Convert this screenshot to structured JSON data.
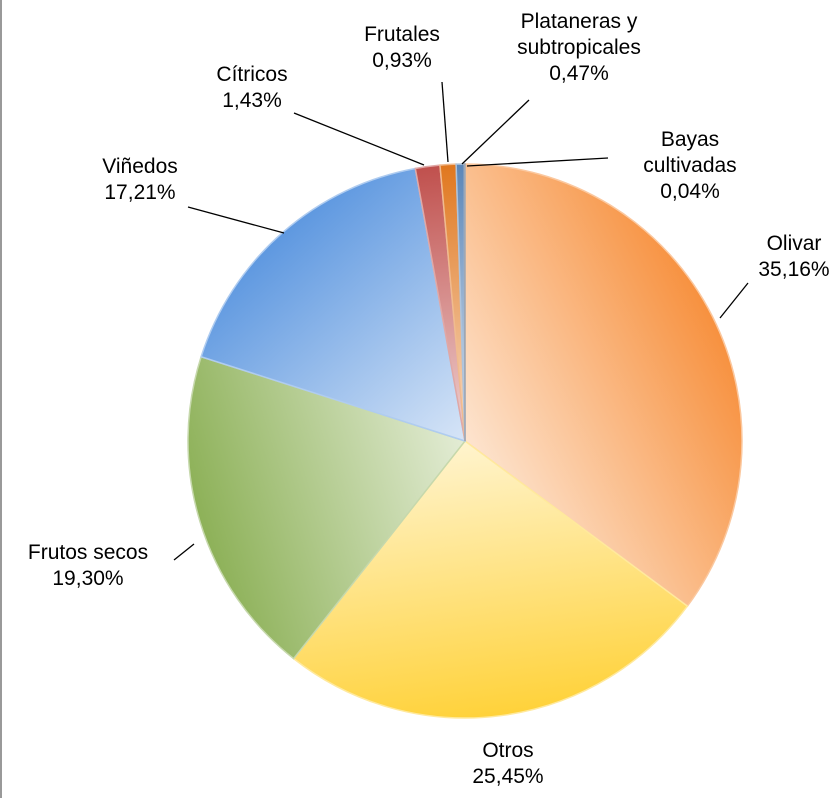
{
  "chart_data": {
    "type": "pie",
    "categories": [
      "Olivar",
      "Otros",
      "Frutos secos",
      "Viñedos",
      "Cítricos",
      "Frutales",
      "Plataneras y subtropicales",
      "Bayas cultivadas"
    ],
    "values": [
      35.16,
      25.45,
      19.3,
      17.21,
      1.43,
      0.93,
      0.47,
      0.04
    ],
    "value_labels": [
      "35,16%",
      "25,45%",
      "19,30%",
      "17,21%",
      "1,43%",
      "0,93%",
      "0,47%",
      "0,04%"
    ],
    "colors": [
      "#f7913f",
      "#ffd23a",
      "#8db158",
      "#5e98e0",
      "#c0504d",
      "#e0771e",
      "#5b86b8",
      "#3a4f6b"
    ]
  }
}
